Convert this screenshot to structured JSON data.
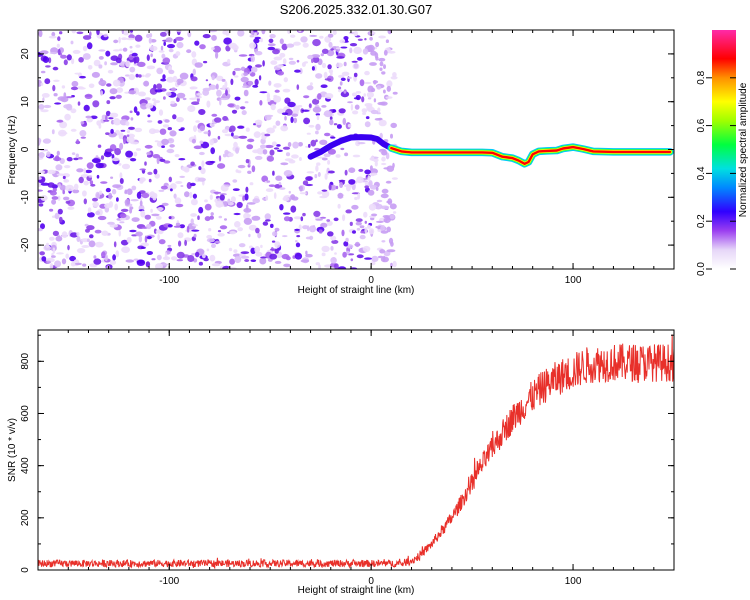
{
  "title": "S206.2025.332.01.30.G07",
  "chart_data": [
    {
      "type": "heatmap",
      "xlabel": "Height of straight line (km)",
      "ylabel": "Frequency (Hz)",
      "xlim": [
        -165,
        150
      ],
      "ylim": [
        -25,
        25
      ],
      "xticks": [
        -100,
        0,
        100
      ],
      "yticks": [
        -20,
        -10,
        0,
        10,
        20
      ],
      "noise_region_x": [
        -165,
        12
      ],
      "signal_track": {
        "x": [
          -30,
          -25,
          -20,
          -15,
          -10,
          -5,
          0,
          3,
          6,
          10,
          15,
          20,
          30,
          40,
          50,
          55,
          60,
          65,
          70,
          73,
          76,
          78,
          80,
          83,
          87,
          92,
          95,
          100,
          105,
          110,
          120,
          130,
          140,
          148
        ],
        "y": [
          -1.5,
          -0.5,
          0.8,
          1.8,
          2.5,
          2.6,
          2.5,
          2.2,
          1.2,
          0.3,
          -0.4,
          -0.6,
          -0.6,
          -0.6,
          -0.6,
          -0.6,
          -0.7,
          -1.5,
          -1.8,
          -2.3,
          -3.0,
          -2.6,
          -1.0,
          -0.4,
          -0.3,
          -0.2,
          0.2,
          0.5,
          0.1,
          -0.4,
          -0.5,
          -0.5,
          -0.5,
          -0.5
        ]
      },
      "colorbar": {
        "label": "Normalized spectral amplitude",
        "ticks": [
          "0.0",
          "0.2",
          "0.4",
          "0.6",
          "0.8"
        ],
        "range": [
          0,
          1
        ]
      }
    },
    {
      "type": "line",
      "xlabel": "Height of straight line (km)",
      "ylabel": "SNR (10 * v/v)",
      "xlim": [
        -165,
        150
      ],
      "ylim": [
        0,
        920
      ],
      "xticks": [
        -100,
        0,
        100
      ],
      "yticks": [
        0,
        200,
        400,
        600,
        800
      ],
      "series": [
        {
          "name": "SNR",
          "color": "#e8302a",
          "trend_x": [
            -165,
            15,
            20,
            25,
            30,
            35,
            40,
            45,
            50,
            55,
            60,
            65,
            70,
            75,
            80,
            85,
            90,
            95,
            100,
            105,
            110,
            120,
            130,
            140,
            150
          ],
          "trend_y": [
            25,
            25,
            35,
            60,
            100,
            150,
            200,
            265,
            335,
            405,
            465,
            525,
            580,
            625,
            665,
            700,
            725,
            745,
            760,
            780,
            790,
            795,
            795,
            795,
            795
          ]
        }
      ]
    }
  ]
}
